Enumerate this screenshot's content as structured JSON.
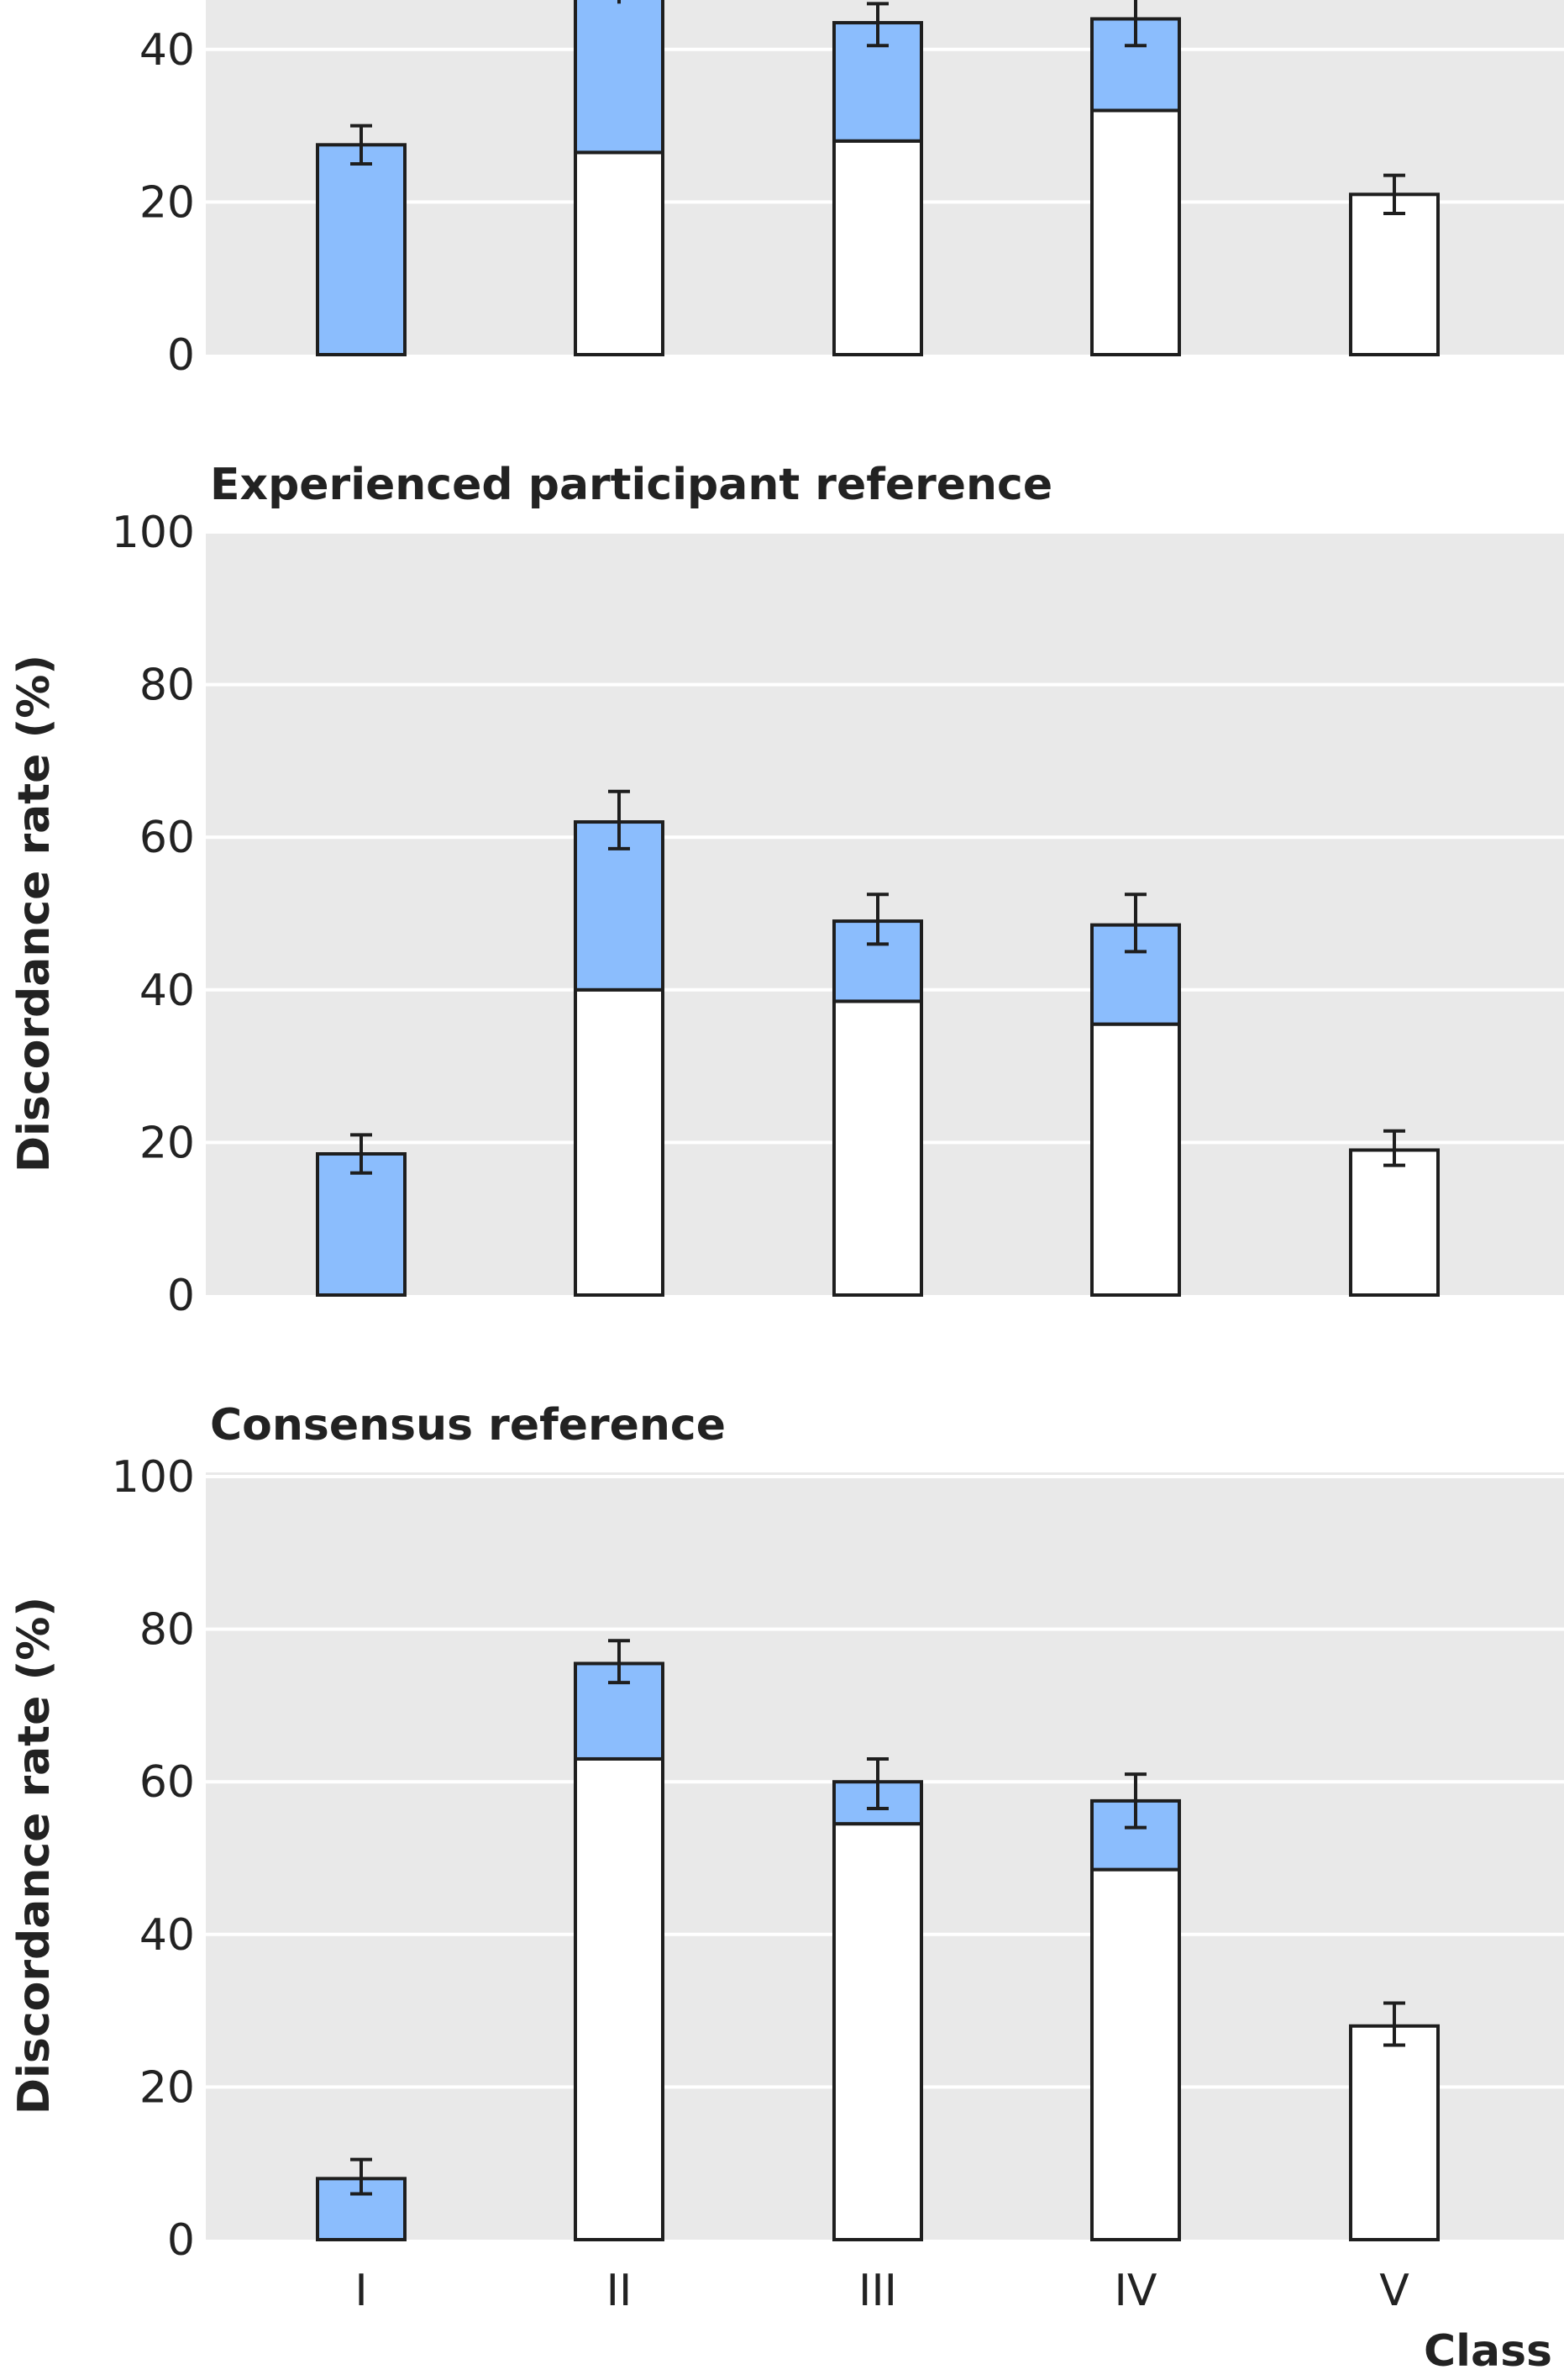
{
  "chart_data": [
    {
      "type": "bar",
      "title": "",
      "ylabel": "Discordance rate (%)",
      "ylabel_visible": "Di",
      "ylim": [
        0,
        100
      ],
      "yticks": [
        "0",
        "20",
        "40"
      ],
      "categories": [
        "I",
        "II",
        "III",
        "IV",
        "V"
      ],
      "series": [
        {
          "fill": "white",
          "values": [
            0,
            26.5,
            28,
            32,
            21
          ]
        },
        {
          "fill": "blue",
          "values": [
            27.5,
            22,
            15.5,
            12,
            0
          ]
        }
      ],
      "error_bars": [
        [
          25,
          30
        ],
        [
          null,
          null
        ],
        [
          40.5,
          46
        ],
        [
          40.5,
          47.5
        ],
        [
          18.5,
          23.5
        ]
      ]
    },
    {
      "type": "bar",
      "title": "Experienced participant reference",
      "ylabel": "Discordance rate (%)",
      "ylim": [
        0,
        100
      ],
      "yticks": [
        "0",
        "20",
        "40",
        "60",
        "80",
        "100"
      ],
      "categories": [
        "I",
        "II",
        "III",
        "IV",
        "V"
      ],
      "series": [
        {
          "fill": "white",
          "values": [
            0,
            40,
            38.5,
            35.5,
            19
          ]
        },
        {
          "fill": "blue",
          "values": [
            18.5,
            22,
            10.5,
            13,
            0
          ]
        }
      ],
      "error_bars": [
        [
          16,
          21
        ],
        [
          58.5,
          66
        ],
        [
          46,
          52.5
        ],
        [
          45,
          52.5
        ],
        [
          17,
          21.5
        ]
      ]
    },
    {
      "type": "bar",
      "title": "Consensus reference",
      "ylabel": "Discordance rate (%)",
      "xlabel": "Class",
      "ylim": [
        0,
        100
      ],
      "yticks": [
        "0",
        "20",
        "40",
        "60",
        "80",
        "100"
      ],
      "categories": [
        "I",
        "II",
        "III",
        "IV",
        "V"
      ],
      "series": [
        {
          "fill": "white",
          "values": [
            0,
            63,
            54.5,
            48.5,
            28
          ]
        },
        {
          "fill": "blue",
          "values": [
            8,
            12.5,
            5.5,
            9,
            0
          ]
        }
      ],
      "error_bars": [
        [
          6,
          10.5
        ],
        [
          73,
          78.5
        ],
        [
          56.5,
          63
        ],
        [
          54,
          61
        ],
        [
          25.5,
          31
        ]
      ]
    }
  ],
  "colors": {
    "panel_background": "#e9e9e9",
    "gridline": "#ffffff",
    "bar_blue": "#8bbdfd",
    "bar_white": "#ffffff",
    "bar_stroke": "#1e1e1e",
    "text": "#222222"
  }
}
